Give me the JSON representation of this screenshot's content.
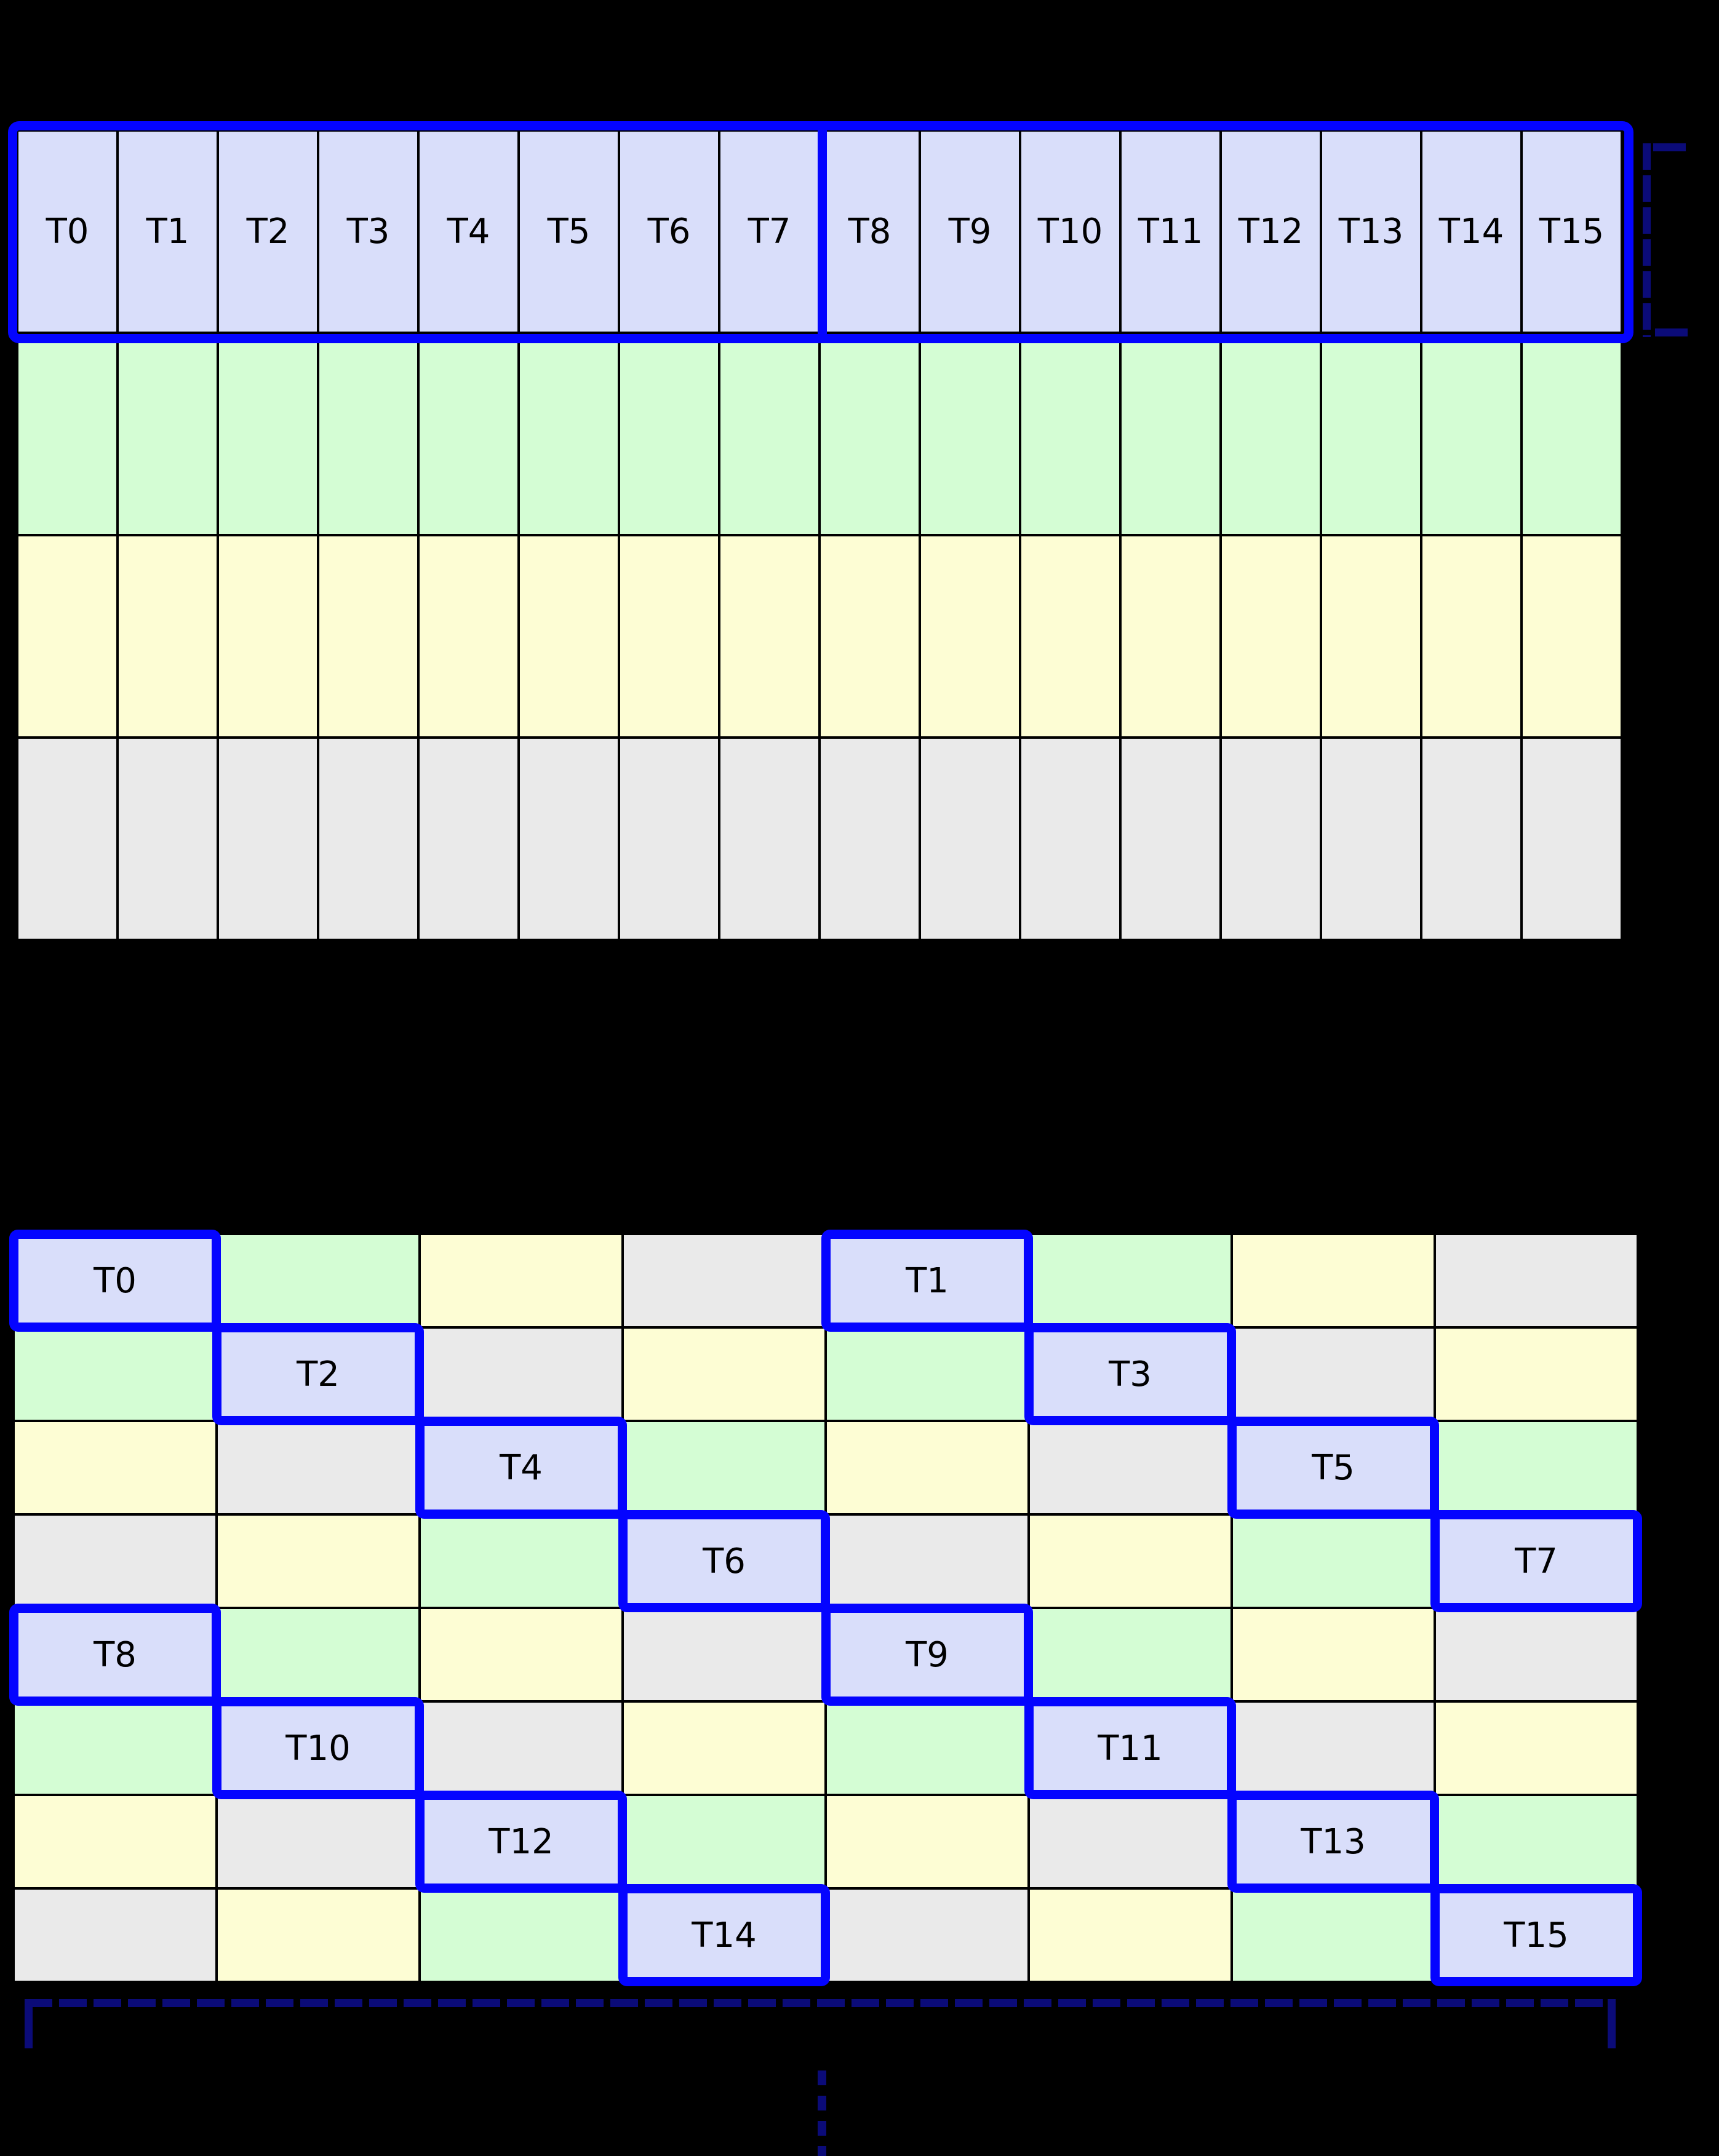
{
  "colors": {
    "thread_fill": "#d9defa",
    "green_fill": "#d4fdd4",
    "yellow_fill": "#fdfdd4",
    "gray_fill": "#eaeaea",
    "outline_blue": "#0404ff",
    "bracket_navy": "#0b0b78",
    "grid_line": "#000000",
    "background": "#000000"
  },
  "top_grid": {
    "columns": 16,
    "thread_labels": [
      "T0",
      "T1",
      "T2",
      "T3",
      "T4",
      "T5",
      "T6",
      "T7",
      "T8",
      "T9",
      "T10",
      "T11",
      "T12",
      "T13",
      "T14",
      "T15"
    ],
    "rows": [
      {
        "name": "thread-row",
        "color": "#d9defa"
      },
      {
        "name": "green-row",
        "color": "#d4fdd4"
      },
      {
        "name": "yellow-row",
        "color": "#fdfdd4"
      },
      {
        "name": "gray-row",
        "color": "#eaeaea"
      }
    ],
    "thick_divider_after_column": 8
  },
  "bottom_grid": {
    "rows": 8,
    "columns": 8,
    "color_cycle": [
      "#d9defa",
      "#d4fdd4",
      "#fdfdd4",
      "#eaeaea"
    ],
    "cell_colors": [
      [
        0,
        1,
        2,
        3,
        0,
        1,
        2,
        3
      ],
      [
        1,
        0,
        3,
        2,
        1,
        0,
        3,
        2
      ],
      [
        2,
        3,
        0,
        1,
        2,
        3,
        0,
        1
      ],
      [
        3,
        2,
        1,
        0,
        3,
        2,
        1,
        0
      ],
      [
        0,
        1,
        2,
        3,
        0,
        1,
        2,
        3
      ],
      [
        1,
        0,
        3,
        2,
        1,
        0,
        3,
        2
      ],
      [
        2,
        3,
        0,
        1,
        2,
        3,
        0,
        1
      ],
      [
        3,
        2,
        1,
        0,
        3,
        2,
        1,
        0
      ]
    ],
    "threads": [
      {
        "label": "T0",
        "row": 0,
        "col": 0
      },
      {
        "label": "T1",
        "row": 0,
        "col": 4
      },
      {
        "label": "T2",
        "row": 1,
        "col": 1
      },
      {
        "label": "T3",
        "row": 1,
        "col": 5
      },
      {
        "label": "T4",
        "row": 2,
        "col": 2
      },
      {
        "label": "T5",
        "row": 2,
        "col": 6
      },
      {
        "label": "T6",
        "row": 3,
        "col": 3
      },
      {
        "label": "T7",
        "row": 3,
        "col": 7
      },
      {
        "label": "T8",
        "row": 4,
        "col": 0
      },
      {
        "label": "T9",
        "row": 4,
        "col": 4
      },
      {
        "label": "T10",
        "row": 5,
        "col": 1
      },
      {
        "label": "T11",
        "row": 5,
        "col": 5
      },
      {
        "label": "T12",
        "row": 6,
        "col": 2
      },
      {
        "label": "T13",
        "row": 6,
        "col": 6
      },
      {
        "label": "T14",
        "row": 7,
        "col": 3
      },
      {
        "label": "T15",
        "row": 7,
        "col": 7
      }
    ]
  }
}
